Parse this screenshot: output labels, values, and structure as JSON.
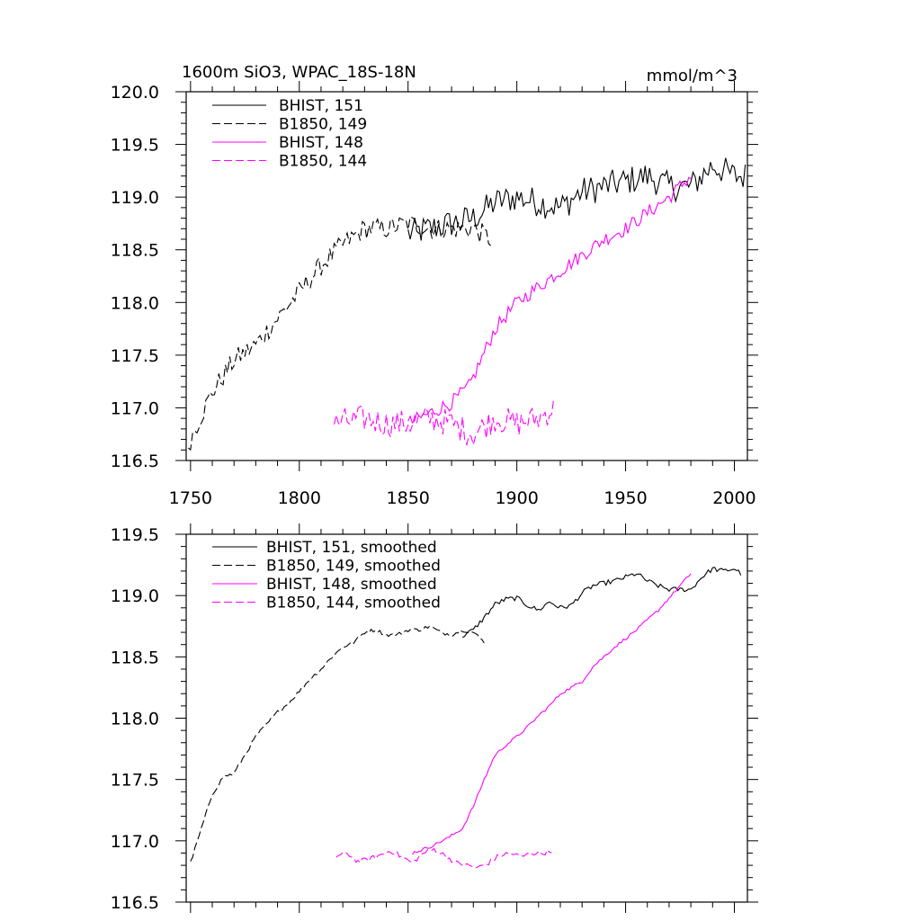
{
  "chart_data": [
    {
      "type": "line",
      "title": "1600m SiO3, WPAC_18S-18N",
      "units": "mmol/m^3",
      "xlim": [
        1748,
        2006
      ],
      "ylim": [
        116.5,
        120.0
      ],
      "xticks": [
        1750,
        1800,
        1850,
        1900,
        1950,
        2000
      ],
      "yticks": [
        "116.5",
        "117.0",
        "117.5",
        "118.0",
        "118.5",
        "119.0",
        "119.5",
        "120.0"
      ],
      "legend_position": "top-left",
      "series": [
        {
          "name": "BHIST, 151",
          "color": "#000000",
          "dash": "solid",
          "x": [
            1850,
            1860,
            1870,
            1880,
            1890,
            1900,
            1910,
            1920,
            1930,
            1940,
            1950,
            1960,
            1970,
            1980,
            1990,
            2000,
            2005
          ],
          "y": [
            118.65,
            118.7,
            118.75,
            118.8,
            118.95,
            119.0,
            118.95,
            118.9,
            119.05,
            119.1,
            119.15,
            119.2,
            119.1,
            119.1,
            119.3,
            119.2,
            119.2
          ],
          "noise": 0.14
        },
        {
          "name": "B1850, 149",
          "color": "#000000",
          "dash": "dashed",
          "x": [
            1749,
            1752,
            1760,
            1770,
            1780,
            1790,
            1800,
            1810,
            1820,
            1830,
            1840,
            1850,
            1860,
            1870,
            1880,
            1888
          ],
          "y": [
            116.65,
            116.8,
            117.15,
            117.45,
            117.6,
            117.85,
            118.1,
            118.35,
            118.55,
            118.7,
            118.7,
            118.75,
            118.7,
            118.7,
            118.7,
            118.6
          ],
          "noise": 0.1
        },
        {
          "name": "BHIST, 148",
          "color": "#ff00ff",
          "dash": "solid",
          "x": [
            1850,
            1860,
            1870,
            1878,
            1890,
            1900,
            1910,
            1920,
            1930,
            1940,
            1950,
            1960,
            1970,
            1980
          ],
          "y": [
            116.85,
            116.95,
            117.05,
            117.2,
            117.75,
            118.0,
            118.15,
            118.3,
            118.45,
            118.6,
            118.7,
            118.85,
            119.0,
            119.2
          ],
          "noise": 0.07
        },
        {
          "name": "B1850, 144",
          "color": "#ff00ff",
          "dash": "dashed",
          "x": [
            1816,
            1830,
            1840,
            1850,
            1860,
            1870,
            1880,
            1890,
            1900,
            1910,
            1917
          ],
          "y": [
            116.85,
            116.9,
            116.85,
            116.85,
            116.9,
            116.85,
            116.75,
            116.9,
            116.85,
            116.9,
            117.0
          ],
          "noise": 0.13
        }
      ]
    },
    {
      "type": "line",
      "xlim": [
        1748,
        2006
      ],
      "ylim": [
        116.5,
        119.5
      ],
      "xticks": [
        1750,
        1800,
        1850,
        1900,
        1950,
        2000
      ],
      "yticks": [
        "116.5",
        "117.0",
        "117.5",
        "118.0",
        "118.5",
        "119.0",
        "119.5"
      ],
      "legend_position": "top-left",
      "series": [
        {
          "name": "BHIST, 151, smoothed",
          "color": "#000000",
          "dash": "solid",
          "x": [
            1875,
            1880,
            1885,
            1890,
            1895,
            1900,
            1905,
            1910,
            1915,
            1920,
            1925,
            1930,
            1935,
            1940,
            1945,
            1950,
            1955,
            1960,
            1965,
            1970,
            1975,
            1980,
            1985,
            1990,
            1995,
            2000,
            2003
          ],
          "y": [
            118.67,
            118.72,
            118.82,
            118.93,
            118.97,
            118.98,
            118.92,
            118.88,
            118.95,
            118.9,
            118.92,
            119.02,
            119.08,
            119.1,
            119.12,
            119.15,
            119.18,
            119.12,
            119.08,
            119.05,
            119.05,
            119.05,
            119.15,
            119.22,
            119.2,
            119.22,
            119.18
          ],
          "noise": 0.02
        },
        {
          "name": "B1850, 149, smoothed",
          "color": "#000000",
          "dash": "dashed",
          "x": [
            1750,
            1755,
            1760,
            1765,
            1770,
            1775,
            1780,
            1785,
            1790,
            1795,
            1800,
            1805,
            1810,
            1815,
            1820,
            1825,
            1830,
            1835,
            1840,
            1845,
            1850,
            1855,
            1860,
            1865,
            1870,
            1875,
            1880,
            1885
          ],
          "y": [
            116.82,
            117.1,
            117.38,
            117.52,
            117.55,
            117.7,
            117.85,
            117.95,
            118.05,
            118.12,
            118.22,
            118.32,
            118.4,
            118.5,
            118.58,
            118.62,
            118.7,
            118.72,
            118.68,
            118.68,
            118.72,
            118.72,
            118.75,
            118.7,
            118.68,
            118.72,
            118.7,
            118.62
          ],
          "noise": 0.015
        },
        {
          "name": "BHIST, 148, smoothed",
          "color": "#ff00ff",
          "dash": "solid",
          "x": [
            1852,
            1860,
            1868,
            1875,
            1880,
            1885,
            1890,
            1895,
            1900,
            1905,
            1910,
            1915,
            1920,
            1925,
            1930,
            1935,
            1940,
            1945,
            1950,
            1955,
            1960,
            1965,
            1970,
            1975,
            1980
          ],
          "y": [
            116.9,
            116.95,
            117.02,
            117.1,
            117.28,
            117.5,
            117.7,
            117.78,
            117.85,
            117.93,
            118.02,
            118.1,
            118.2,
            118.25,
            118.3,
            118.42,
            118.5,
            118.58,
            118.65,
            118.72,
            118.8,
            118.88,
            118.98,
            119.08,
            119.18
          ],
          "noise": 0.012
        },
        {
          "name": "B1850, 144, smoothed",
          "color": "#ff00ff",
          "dash": "dashed",
          "x": [
            1817,
            1822,
            1827,
            1832,
            1837,
            1842,
            1847,
            1852,
            1857,
            1862,
            1867,
            1872,
            1877,
            1882,
            1887,
            1892,
            1897,
            1902,
            1907,
            1912,
            1916
          ],
          "y": [
            116.87,
            116.9,
            116.83,
            116.85,
            116.88,
            116.92,
            116.87,
            116.82,
            116.9,
            116.93,
            116.88,
            116.82,
            116.8,
            116.78,
            116.82,
            116.88,
            116.9,
            116.87,
            116.9,
            116.9,
            116.92
          ],
          "noise": 0.02
        }
      ]
    }
  ]
}
